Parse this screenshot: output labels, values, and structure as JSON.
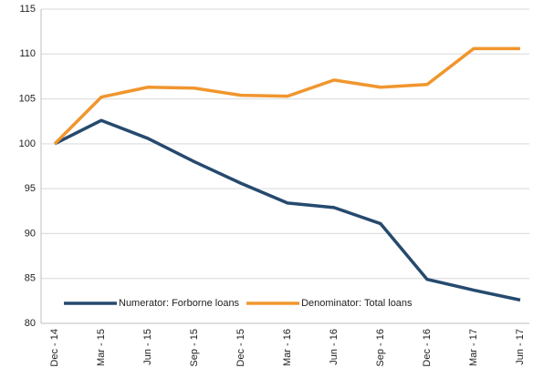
{
  "chart_data": {
    "type": "line",
    "categories": [
      "Dec - 14",
      "Mar - 15",
      "Jun - 15",
      "Sep - 15",
      "Dec - 15",
      "Mar - 16",
      "Jun - 16",
      "Sep - 16",
      "Dec - 16",
      "Mar - 17",
      "Jun - 17"
    ],
    "series": [
      {
        "name": "Numerator: Forborne loans",
        "color": "#264a6e",
        "values": [
          100,
          102.6,
          100.6,
          98,
          95.6,
          93.4,
          92.9,
          91.1,
          84.9,
          83.7,
          82.6
        ]
      },
      {
        "name": "Denominator: Total loans",
        "color": "#f0962e",
        "values": [
          100,
          105.2,
          106.3,
          106.2,
          105.4,
          105.3,
          107.1,
          106.3,
          106.6,
          110.6,
          110.6
        ]
      }
    ],
    "ylim": [
      80,
      115
    ],
    "yticks": [
      80,
      85,
      90,
      95,
      100,
      105,
      110,
      115
    ],
    "grid": true,
    "legend": "lower left"
  }
}
